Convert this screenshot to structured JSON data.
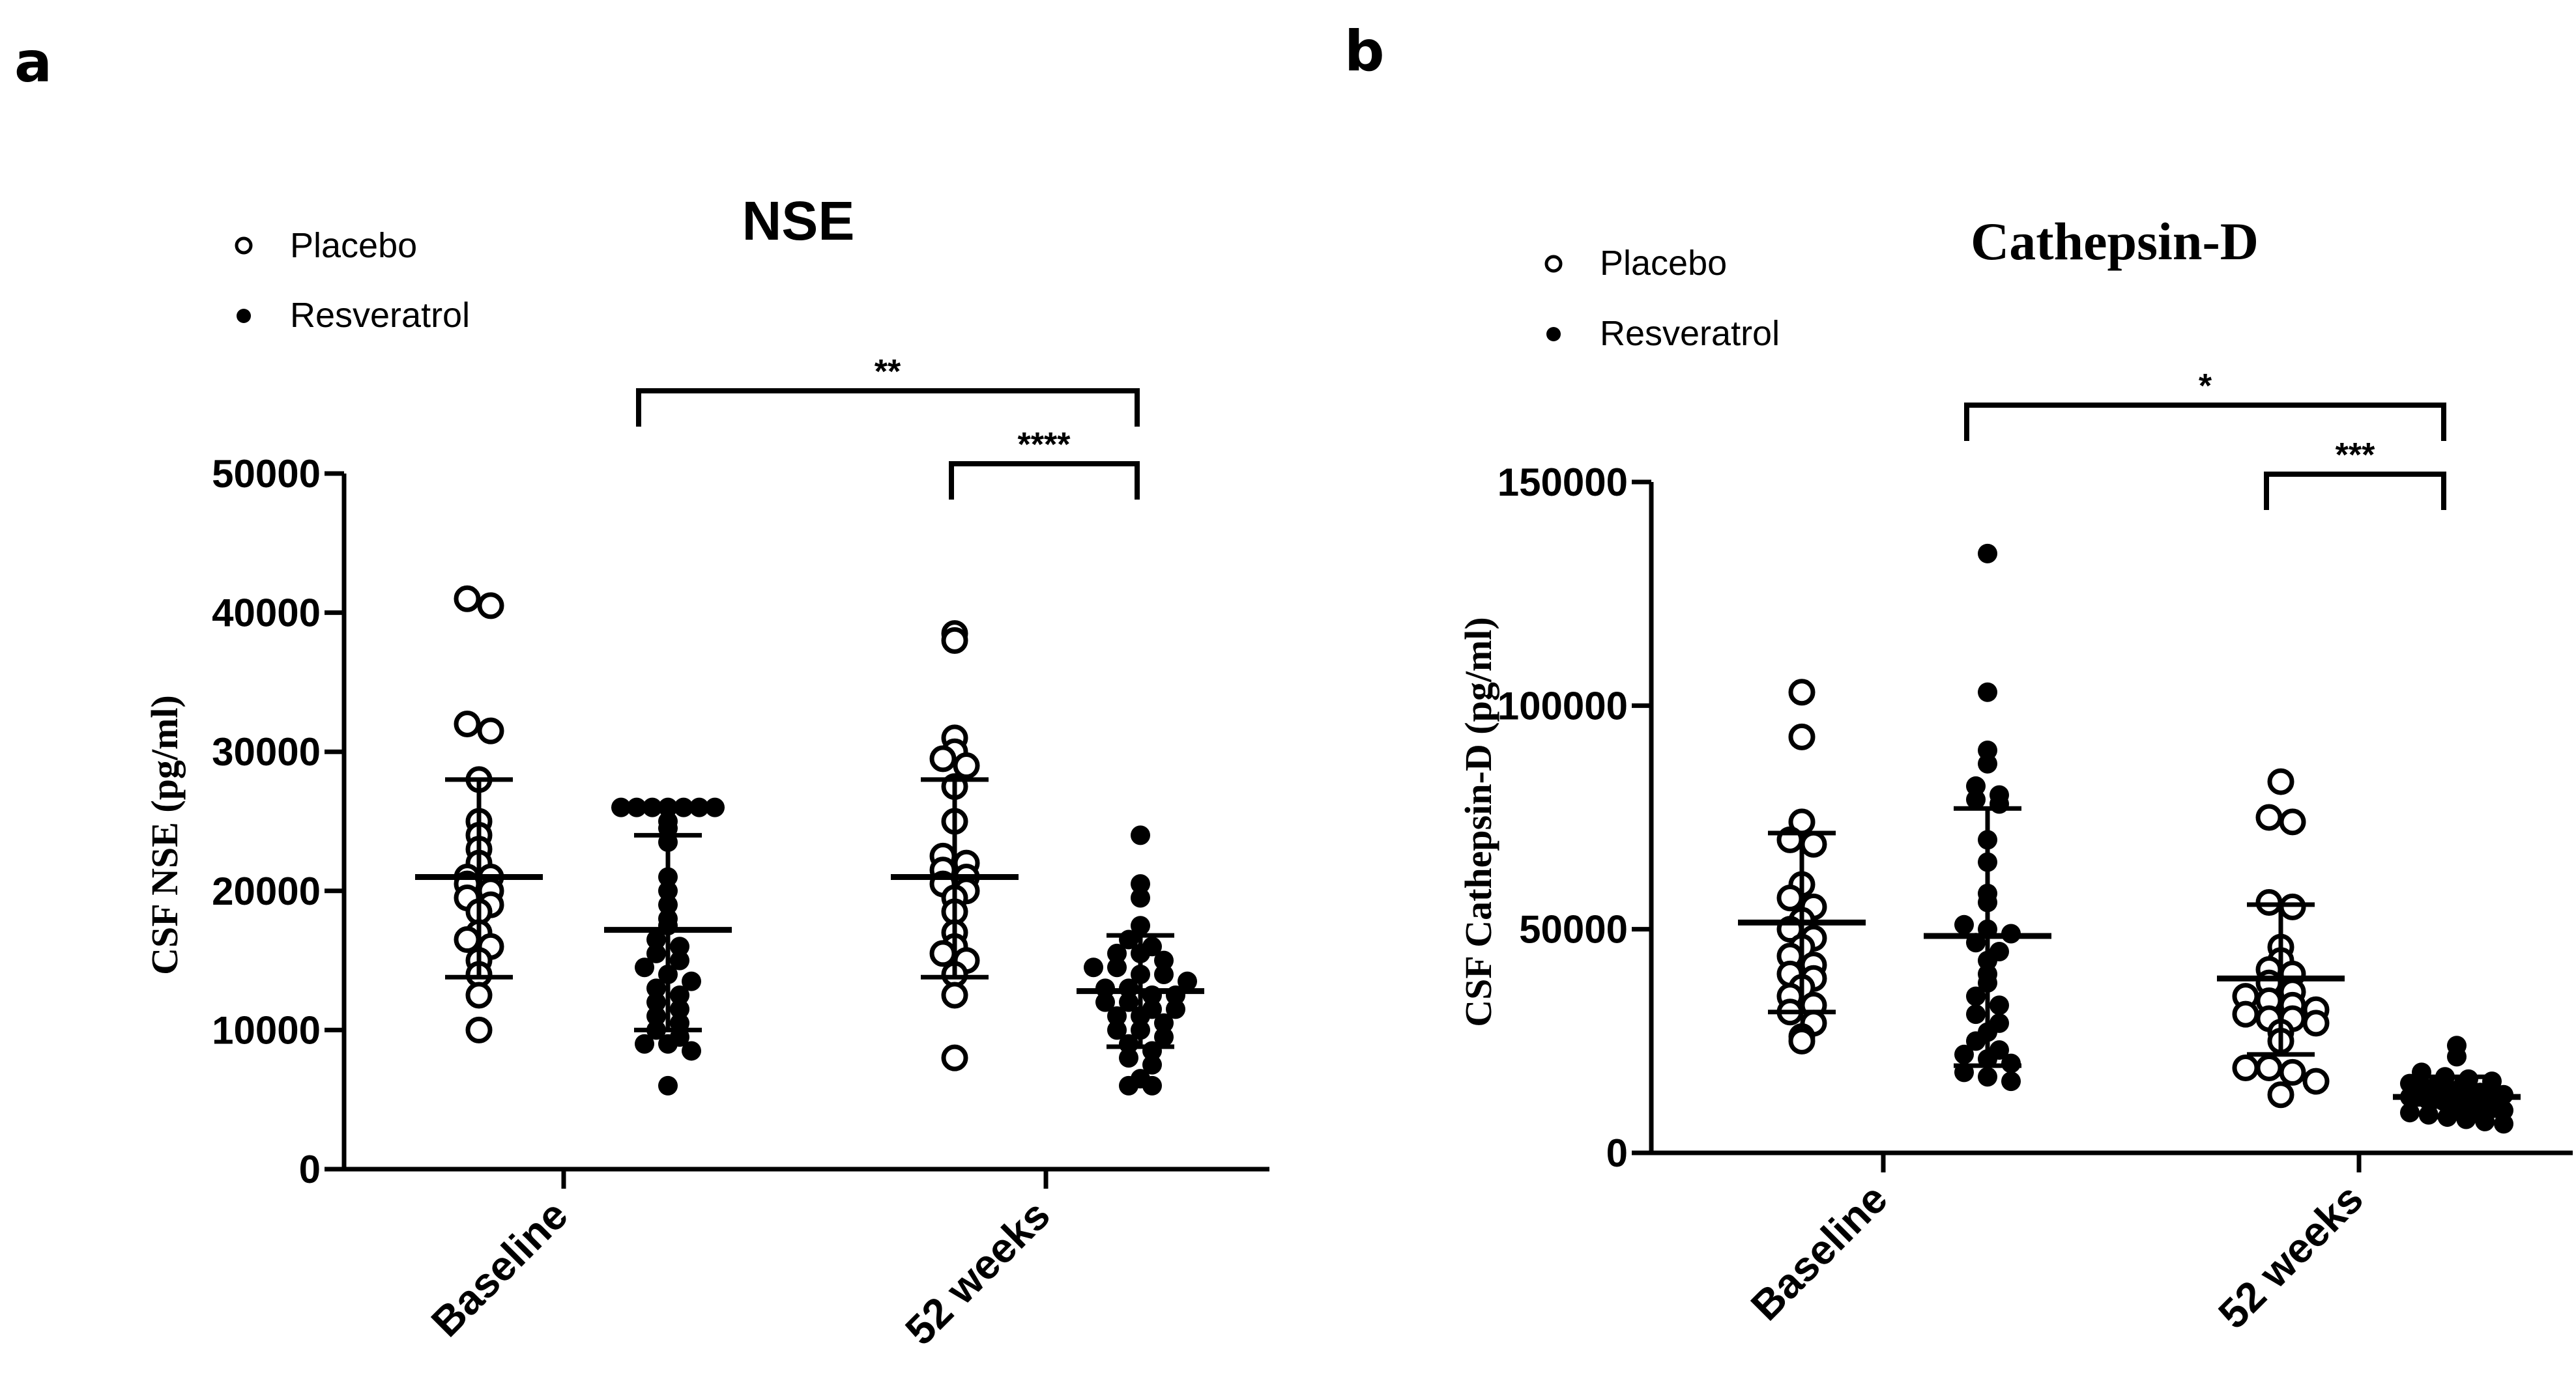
{
  "chart_data": [
    {
      "panel": "a",
      "type": "scatter",
      "title": "NSE",
      "ylabel": "CSF NSE  (pg/ml)",
      "ylim": [
        0,
        50000
      ],
      "yticks": [
        "0",
        "10000",
        "20000",
        "30000",
        "40000",
        "50000"
      ],
      "categories": [
        "Baseline",
        "52 weeks"
      ],
      "legend": {
        "placement": "top-left",
        "entries": [
          "Placebo",
          "Resveratrol"
        ]
      },
      "series": [
        {
          "name": "Placebo",
          "marker": "open-circle",
          "groups": [
            {
              "category": "Baseline",
              "mean": 21000,
              "sd_low": 13800,
              "sd_high": 28000,
              "points": [
                41000,
                40500,
                32000,
                31500,
                28000,
                25000,
                24000,
                23000,
                22000,
                21000,
                21000,
                20500,
                20000,
                19500,
                19000,
                18500,
                17000,
                16500,
                16000,
                15000,
                14000,
                12500,
                10000
              ]
            },
            {
              "category": "52 weeks",
              "mean": 21000,
              "sd_low": 13800,
              "sd_high": 28000,
              "points": [
                38500,
                38000,
                31000,
                30000,
                29500,
                29000,
                27500,
                25000,
                22500,
                22000,
                21500,
                21000,
                20500,
                20000,
                19500,
                18500,
                17000,
                16000,
                15500,
                15000,
                14000,
                12500,
                8000
              ]
            }
          ]
        },
        {
          "name": "Resveratrol",
          "marker": "filled-circle",
          "groups": [
            {
              "category": "Baseline",
              "mean": 17200,
              "sd_low": 10000,
              "sd_high": 24000,
              "points": [
                26000,
                26000,
                26000,
                26000,
                26000,
                26000,
                26000,
                25000,
                24500,
                23500,
                21000,
                20000,
                19000,
                18000,
                17500,
                16500,
                16000,
                15500,
                15000,
                14500,
                14000,
                13500,
                13000,
                12500,
                12000,
                11500,
                11000,
                10500,
                10000,
                9500,
                9000,
                9000,
                8500,
                6000
              ]
            },
            {
              "category": "52 weeks",
              "mean": 12800,
              "sd_low": 8800,
              "sd_high": 16800,
              "points": [
                24000,
                20500,
                19500,
                17500,
                16500,
                16000,
                15500,
                15500,
                15000,
                14500,
                14500,
                14000,
                14000,
                13500,
                13000,
                13000,
                12500,
                12500,
                12000,
                12000,
                11500,
                11500,
                11000,
                11000,
                10500,
                10000,
                10000,
                9500,
                9000,
                8500,
                8000,
                7500,
                6500,
                6000,
                6000
              ]
            }
          ]
        }
      ],
      "significance": [
        {
          "label": "**",
          "from": "Resveratrol Baseline",
          "to": "Resveratrol 52 weeks"
        },
        {
          "label": "****",
          "from": "Placebo 52 weeks",
          "to": "Resveratrol 52 weeks"
        }
      ]
    },
    {
      "panel": "b",
      "type": "scatter",
      "title": "Cathepsin-D",
      "ylabel": "CSF Cathepsin-D  (pg/ml)",
      "ylim": [
        0,
        150000
      ],
      "yticks": [
        "0",
        "50000",
        "100000",
        "150000"
      ],
      "categories": [
        "Baseline",
        "52 weeks"
      ],
      "legend": {
        "placement": "top-left",
        "entries": [
          "Placebo",
          "Resveratrol"
        ]
      },
      "series": [
        {
          "name": "Placebo",
          "marker": "open-circle",
          "groups": [
            {
              "category": "Baseline",
              "mean": 51500,
              "sd_low": 31500,
              "sd_high": 71500,
              "points": [
                103000,
                93000,
                74000,
                70000,
                69000,
                60000,
                57000,
                55000,
                52000,
                50000,
                48000,
                46000,
                44000,
                42000,
                40000,
                39000,
                37000,
                35000,
                33000,
                31500,
                29000,
                26000,
                25000
              ]
            },
            {
              "category": "52 weeks",
              "mean": 39000,
              "sd_low": 22000,
              "sd_high": 55500,
              "points": [
                83000,
                75000,
                74000,
                56000,
                55000,
                46000,
                43000,
                41000,
                40000,
                38000,
                36000,
                35000,
                34000,
                33000,
                32000,
                31000,
                30000,
                30000,
                29000,
                27000,
                25000,
                19000,
                19000,
                18000,
                16000,
                13000
              ]
            }
          ]
        },
        {
          "name": "Resveratrol",
          "marker": "filled-circle",
          "groups": [
            {
              "category": "Baseline",
              "mean": 48500,
              "sd_low": 19500,
              "sd_high": 77000,
              "points": [
                134000,
                103000,
                90000,
                87000,
                82000,
                80000,
                79000,
                78000,
                70000,
                65000,
                58000,
                56000,
                51000,
                50000,
                49000,
                47000,
                45000,
                43000,
                40000,
                38000,
                35000,
                33000,
                31000,
                29000,
                27000,
                25000,
                23000,
                22000,
                21000,
                20000,
                18000,
                17000,
                16000
              ]
            },
            {
              "category": "52 weeks",
              "mean": 12500,
              "sd_low": 8000,
              "sd_high": 17000,
              "points": [
                24000,
                21500,
                18000,
                17000,
                16500,
                16000,
                15500,
                15000,
                14500,
                14000,
                14000,
                13500,
                13500,
                13000,
                13000,
                12500,
                12500,
                12000,
                12000,
                11500,
                11500,
                11000,
                11000,
                10500,
                10000,
                10000,
                9500,
                9000,
                8500,
                8000,
                7500,
                7000,
                6500
              ]
            }
          ]
        }
      ],
      "significance": [
        {
          "label": "*",
          "from": "Resveratrol Baseline",
          "to": "Resveratrol 52 weeks"
        },
        {
          "label": "***",
          "from": "Placebo 52 weeks",
          "to": "Resveratrol 52 weeks"
        }
      ]
    }
  ]
}
